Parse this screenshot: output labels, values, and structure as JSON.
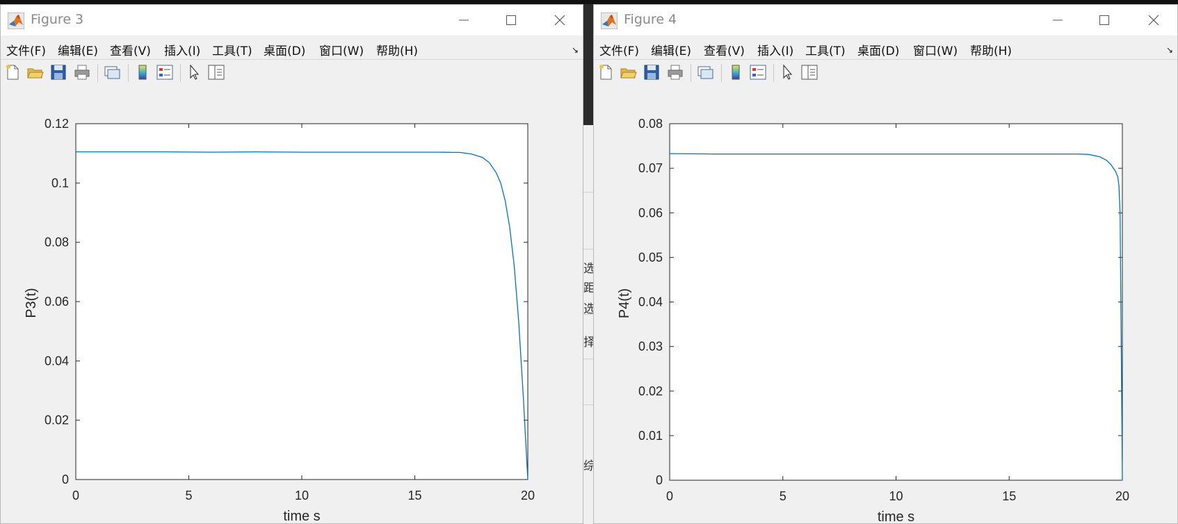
{
  "windows": [
    {
      "title": "Figure 3",
      "menus": [
        "文件(F)",
        "编辑(E)",
        "查看(V)",
        "插入(I)",
        "工具(T)",
        "桌面(D)",
        "窗口(W)",
        "帮助(H)"
      ],
      "menu_arrow": "↘",
      "toolbar_icons": [
        "new-figure-icon",
        "open-file-icon",
        "save-icon",
        "print-icon",
        "link-plot-icon",
        "insert-colorbar-icon",
        "insert-legend-icon",
        "edit-plot-pointer-icon",
        "property-inspector-icon"
      ],
      "chart_data": {
        "type": "line",
        "xlabel": "time s",
        "ylabel": "P3(t)",
        "xlim": [
          0,
          20
        ],
        "ylim": [
          0,
          0.12
        ],
        "xticks": [
          "0",
          "5",
          "10",
          "15",
          "20"
        ],
        "yticks": [
          "0",
          "0.02",
          "0.04",
          "0.06",
          "0.08",
          "0.1",
          "0.12"
        ],
        "series_color": "#0072BD",
        "series": [
          {
            "x": [
              0,
              2,
              4,
              6,
              8,
              10,
              12,
              14,
              16,
              17,
              17.5,
              18,
              18.3,
              18.6,
              18.8,
              19.0,
              19.2,
              19.4,
              19.6,
              19.8,
              20
            ],
            "y": [
              0.1105,
              0.1105,
              0.1105,
              0.1104,
              0.1105,
              0.1104,
              0.1104,
              0.1104,
              0.1104,
              0.1103,
              0.1098,
              0.1086,
              0.1068,
              0.1035,
              0.1,
              0.094,
              0.085,
              0.072,
              0.053,
              0.028,
              0.0
            ]
          }
        ]
      }
    },
    {
      "title": "Figure 4",
      "menus": [
        "文件(F)",
        "编辑(E)",
        "查看(V)",
        "插入(I)",
        "工具(T)",
        "桌面(D)",
        "窗口(W)",
        "帮助(H)"
      ],
      "menu_arrow": "↘",
      "toolbar_icons": [
        "new-figure-icon",
        "open-file-icon",
        "save-icon",
        "print-icon",
        "link-plot-icon",
        "insert-colorbar-icon",
        "insert-legend-icon",
        "edit-plot-pointer-icon",
        "property-inspector-icon"
      ],
      "chart_data": {
        "type": "line",
        "xlabel": "time s",
        "ylabel": "P4(t)",
        "xlim": [
          0,
          20
        ],
        "ylim": [
          0,
          0.08
        ],
        "xticks": [
          "0",
          "5",
          "10",
          "15",
          "20"
        ],
        "yticks": [
          "0",
          "0.01",
          "0.02",
          "0.03",
          "0.04",
          "0.05",
          "0.06",
          "0.07",
          "0.08"
        ],
        "series_color": "#0072BD",
        "series": [
          {
            "x": [
              0,
              2,
              4,
              6,
              8,
              10,
              12,
              14,
              16,
              18,
              18.5,
              19.0,
              19.3,
              19.5,
              19.7,
              19.8,
              19.85,
              19.9,
              19.95,
              20
            ],
            "y": [
              0.0733,
              0.0732,
              0.0732,
              0.0732,
              0.0732,
              0.0732,
              0.0732,
              0.0732,
              0.0732,
              0.0732,
              0.0731,
              0.0726,
              0.0718,
              0.0708,
              0.0693,
              0.068,
              0.066,
              0.06,
              0.03,
              0.0
            ]
          }
        ]
      }
    }
  ],
  "background_window": {
    "fragments": [
      "选",
      "距",
      "选",
      "择",
      "综"
    ]
  }
}
